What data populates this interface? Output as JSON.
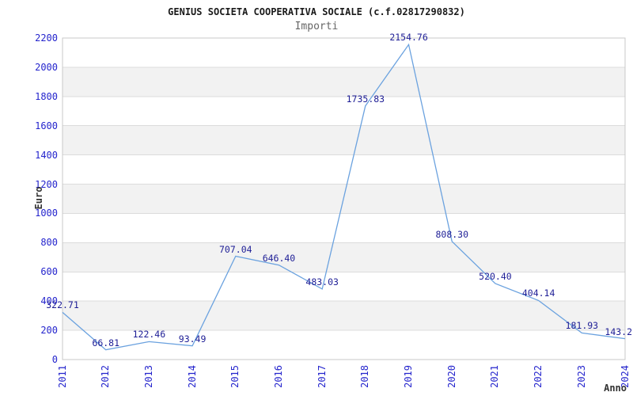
{
  "header": {
    "title": "GENIUS SOCIETA COOPERATIVA SOCIALE (c.f.02817290832)",
    "subtitle": "Importi"
  },
  "axes": {
    "y_title": "Euro",
    "x_title": "Anno"
  },
  "colors": {
    "line": "#6ba2df",
    "tick_label": "#2525cd",
    "point_label": "#1e1e96",
    "band": "#f2f2f2",
    "gridline": "#dcdcdc",
    "border": "#c8c8c8"
  },
  "chart_data": {
    "type": "line",
    "title": "GENIUS SOCIETA COOPERATIVA SOCIALE (c.f.02817290832)",
    "subtitle": "Importi",
    "xlabel": "Anno",
    "ylabel": "Euro",
    "categories": [
      "2011",
      "2012",
      "2013",
      "2014",
      "2015",
      "2016",
      "2017",
      "2018",
      "2019",
      "2020",
      "2021",
      "2022",
      "2023",
      "2024"
    ],
    "values": [
      322.71,
      66.81,
      122.46,
      93.49,
      707.04,
      646.4,
      483.03,
      1735.83,
      2154.76,
      808.3,
      520.4,
      404.14,
      181.93,
      143.2
    ],
    "point_labels": [
      "322.71",
      "66.81",
      "122.46",
      "93.49",
      "707.04",
      "646.40",
      "483.03",
      "1735.83",
      "2154.76",
      "808.30",
      "520.40",
      "404.14",
      "181.93",
      "143.2"
    ],
    "ylim": [
      0,
      2200
    ],
    "ytick_step": 200,
    "ytick_labels": [
      "0",
      "200",
      "400",
      "600",
      "800",
      "1000",
      "1200",
      "1400",
      "1600",
      "1800",
      "2000",
      "2200"
    ],
    "grid": "horizontal-gridlines-with-alternating-bands",
    "legend": "none",
    "markers": "none"
  }
}
